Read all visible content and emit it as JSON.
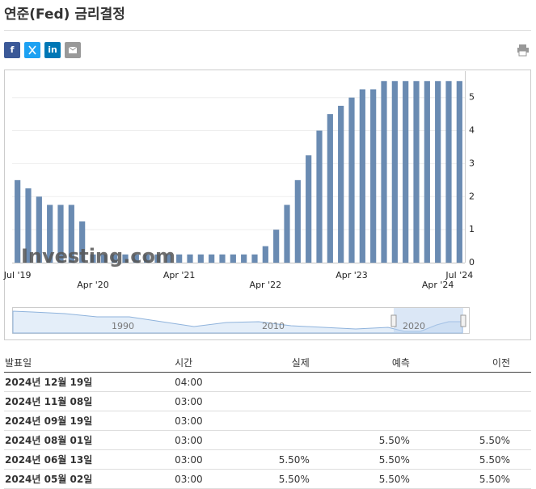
{
  "header": {
    "title": "연준(Fed) 금리결정"
  },
  "share": {
    "facebook": "f",
    "linkedin": "in"
  },
  "chart_data": {
    "type": "bar",
    "categories": [
      "Jul '19",
      null,
      null,
      null,
      null,
      null,
      null,
      "Apr '20",
      null,
      null,
      null,
      null,
      null,
      null,
      null,
      "Apr '21",
      null,
      null,
      null,
      null,
      null,
      null,
      null,
      "Apr '22",
      null,
      null,
      null,
      null,
      null,
      null,
      null,
      "Apr '23",
      null,
      null,
      null,
      null,
      null,
      null,
      null,
      "Apr '24",
      null,
      "Jul '24"
    ],
    "values": [
      2.5,
      2.25,
      2.0,
      1.75,
      1.75,
      1.75,
      1.25,
      0.25,
      0.25,
      0.25,
      0.25,
      0.25,
      0.25,
      0.25,
      0.25,
      0.25,
      0.25,
      0.25,
      0.25,
      0.25,
      0.25,
      0.25,
      0.25,
      0.5,
      1.0,
      1.75,
      2.5,
      3.25,
      4.0,
      4.5,
      4.75,
      5.0,
      5.25,
      5.25,
      5.5,
      5.5,
      5.5,
      5.5,
      5.5,
      5.5,
      5.5,
      5.5
    ],
    "color": "#6a8bb2",
    "ylim": [
      0,
      5.8
    ],
    "yticks": [
      0,
      1,
      2,
      3,
      4,
      5
    ],
    "grid": true,
    "watermark": "Investing.com",
    "navigator_labels": [
      "1990",
      "2010",
      "2020"
    ]
  },
  "table": {
    "header": [
      "발표일",
      "시간",
      "실제",
      "예측",
      "이전"
    ],
    "rows": [
      [
        "2024년 12월 19일",
        "04:00",
        "",
        "",
        ""
      ],
      [
        "2024년 11월 08일",
        "03:00",
        "",
        "",
        ""
      ],
      [
        "2024년 09월 19일",
        "03:00",
        "",
        "",
        ""
      ],
      [
        "2024년 08월 01일",
        "03:00",
        "",
        "5.50%",
        "5.50%"
      ],
      [
        "2024년 06월 13일",
        "03:00",
        "5.50%",
        "5.50%",
        "5.50%"
      ],
      [
        "2024년 05월 02일",
        "03:00",
        "5.50%",
        "5.50%",
        "5.50%"
      ]
    ]
  }
}
